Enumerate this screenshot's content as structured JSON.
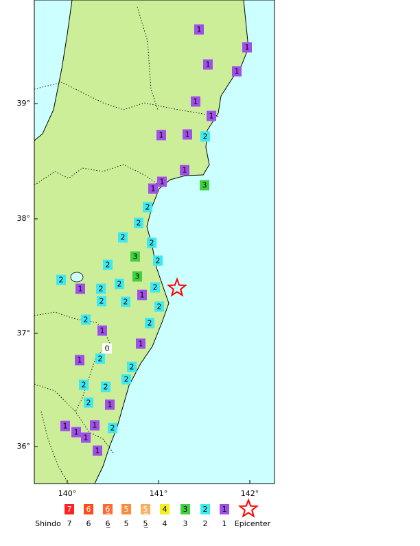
{
  "axes": {
    "lon": [
      "140°",
      "141°",
      "142°"
    ],
    "lat": [
      "39°",
      "38°",
      "37°",
      "36°"
    ]
  },
  "stations": [
    "1",
    "1",
    "1",
    "1",
    "1",
    "1",
    "1",
    "1",
    "2",
    "1",
    "3",
    "1",
    "1",
    "2",
    "2",
    "2",
    "2",
    "3",
    "2",
    "2",
    "3",
    "2",
    "1",
    "2",
    "2",
    "2",
    "2",
    "2",
    "1",
    "2",
    "2",
    "2",
    "1",
    "1",
    "0",
    "1",
    "2",
    "2",
    "2",
    "2",
    "2",
    "2",
    "1",
    "1",
    "1",
    "1",
    "2",
    "1",
    "1"
  ],
  "legend": {
    "title": "Shindo",
    "items": [
      {
        "box": "7",
        "label": "7",
        "color": "#ff2020"
      },
      {
        "box": "6̄",
        "label": "6̄",
        "color": "#ff4a1a"
      },
      {
        "box": "6̲",
        "label": "6̲",
        "color": "#ff6a30"
      },
      {
        "box": "5̄",
        "label": "5̄",
        "color": "#ff8a3a"
      },
      {
        "box": "5̲",
        "label": "5̲",
        "color": "#f7b060"
      },
      {
        "box": "4",
        "label": "4",
        "color": "#f4f020"
      },
      {
        "box": "3",
        "label": "3",
        "color": "#40d040"
      },
      {
        "box": "2",
        "label": "2",
        "color": "#40e8f0"
      },
      {
        "box": "1",
        "label": "1",
        "color": "#a050e8"
      }
    ],
    "epicenter": "Epicenter"
  }
}
